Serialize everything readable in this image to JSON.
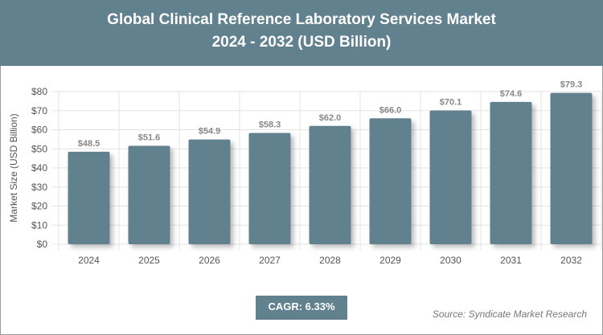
{
  "header": {
    "title": "Global Clinical Reference Laboratory Services Market",
    "subtitle": "2024 - 2032 (USD Billion)"
  },
  "chart_data": {
    "type": "bar",
    "categories": [
      "2024",
      "2025",
      "2026",
      "2027",
      "2028",
      "2029",
      "2030",
      "2031",
      "2032"
    ],
    "values": [
      48.5,
      51.6,
      54.9,
      58.3,
      62.0,
      66.0,
      70.1,
      74.6,
      79.3
    ],
    "data_labels": [
      "$48.5",
      "$51.6",
      "$54.9",
      "$58.3",
      "$62.0",
      "$66.0",
      "$70.1",
      "$74.6",
      "$79.3"
    ],
    "ylabel": "Market Size (USD Billion)",
    "ylim": [
      0,
      80
    ],
    "yticks": [
      "$0",
      "$10",
      "$20",
      "$30",
      "$40",
      "$50",
      "$60",
      "$70",
      "$80"
    ],
    "grid": true,
    "bar_color": "#62818f"
  },
  "footer": {
    "cagr": "CAGR: 6.33%",
    "source": "Source: Syndicate Market Research"
  }
}
